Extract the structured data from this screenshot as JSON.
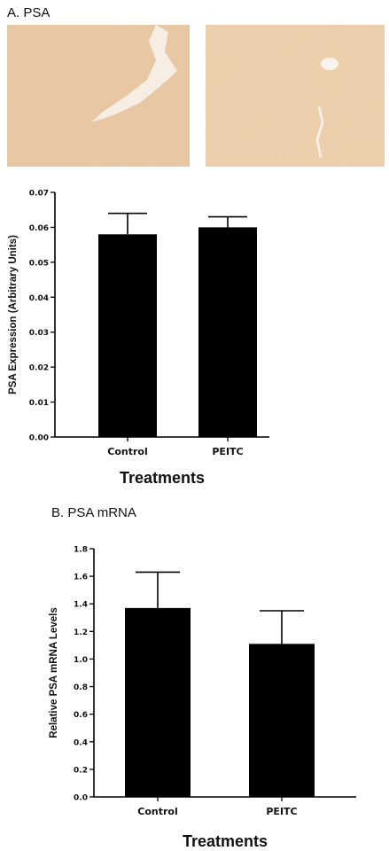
{
  "panel_a": {
    "label": "A. PSA",
    "images": [
      {
        "name": "control-ihc-image",
        "color": "#e8c8a4"
      },
      {
        "name": "peitc-ihc-image",
        "color": "#ecd0ad"
      }
    ]
  },
  "panel_b": {
    "label": "B. PSA mRNA"
  },
  "chart_data": [
    {
      "type": "bar",
      "categories": [
        "Control",
        "PEITC"
      ],
      "values": [
        0.058,
        0.06
      ],
      "error": [
        0.006,
        0.003
      ],
      "xlabel": "Treatments",
      "ylabel": "PSA Expression (Arbitrary Units)",
      "ylim": [
        0,
        0.07
      ],
      "yticks": [
        "0.00",
        "0.01",
        "0.02",
        "0.03",
        "0.04",
        "0.05",
        "0.06",
        "0.07"
      ],
      "bar_color": "#000000",
      "grid": false
    },
    {
      "type": "bar",
      "categories": [
        "Control",
        "PEITC"
      ],
      "values": [
        1.37,
        1.11
      ],
      "error": [
        0.26,
        0.24
      ],
      "xlabel": "Treatments",
      "ylabel": "Relative PSA mRNA Levels",
      "ylim": [
        0,
        1.8
      ],
      "yticks": [
        "0.0",
        "0.2",
        "0.4",
        "0.6",
        "0.8",
        "1.0",
        "1.2",
        "1.4",
        "1.6",
        "1.8"
      ],
      "bar_color": "#000000",
      "grid": false
    }
  ]
}
